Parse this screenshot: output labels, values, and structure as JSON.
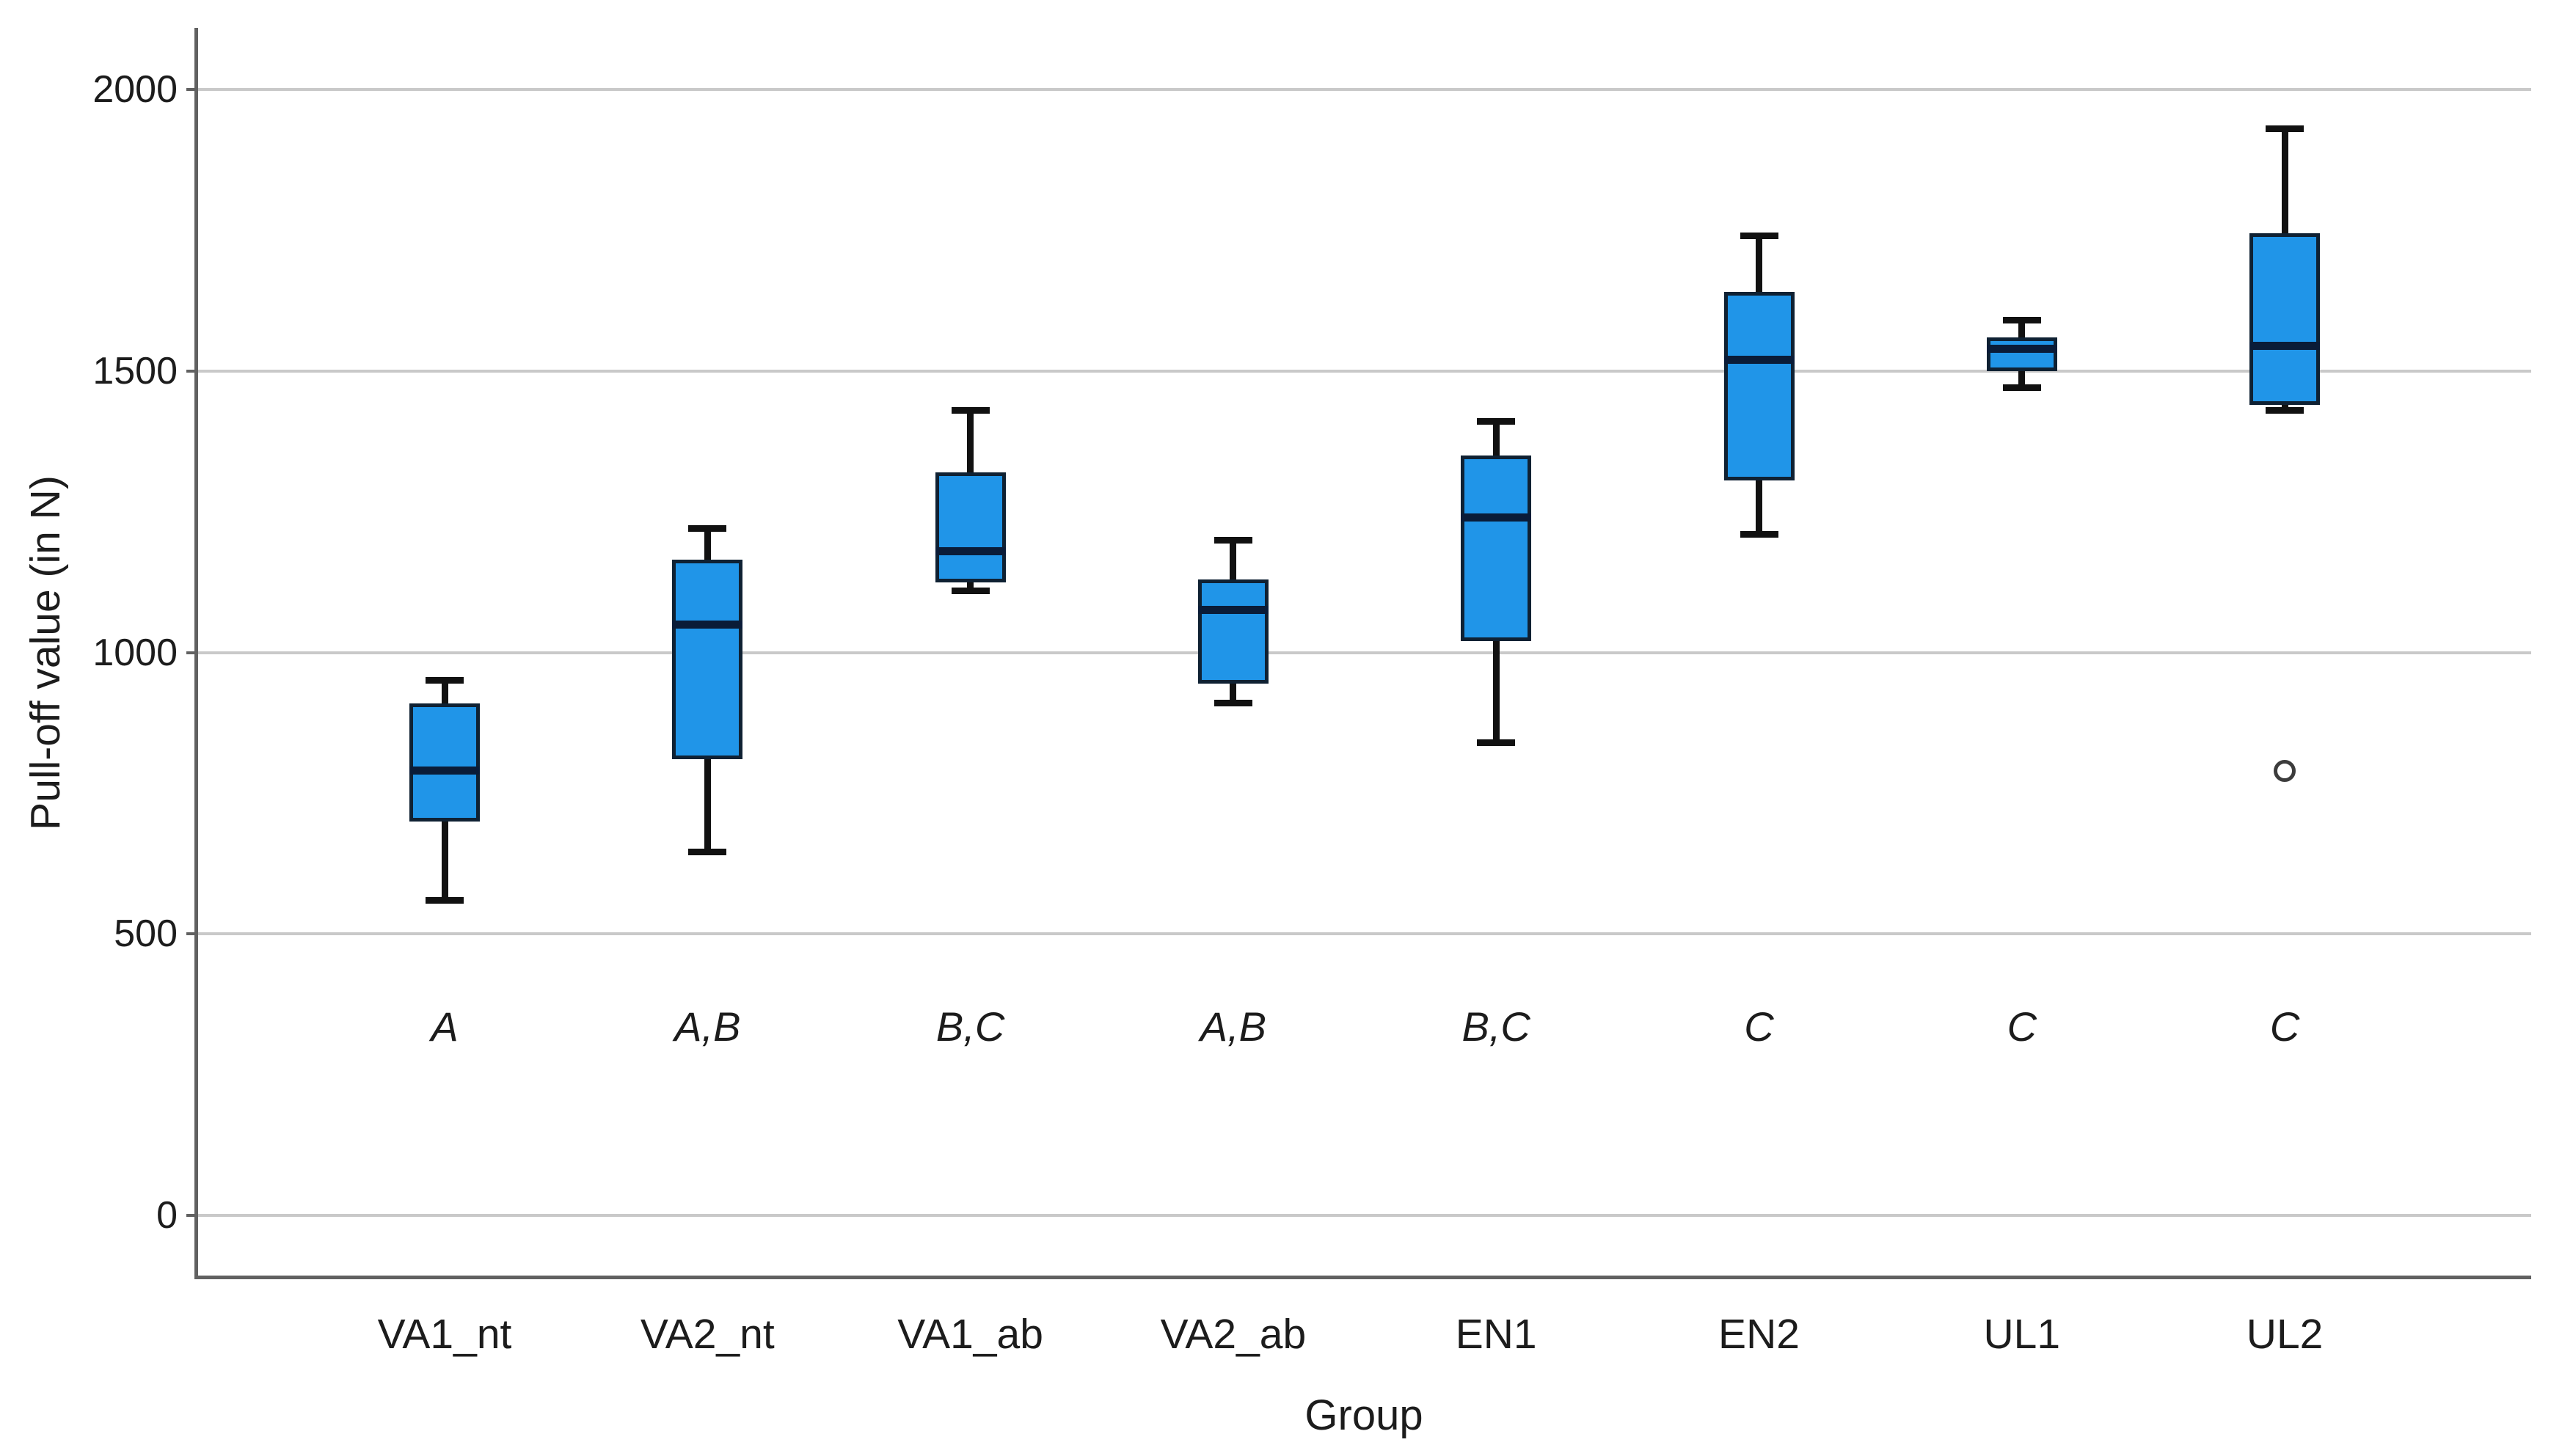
{
  "chart_data": {
    "type": "boxplot",
    "title": "",
    "xlabel": "Group",
    "ylabel": "Pull-off value (in N)",
    "ylim": [
      0,
      2000
    ],
    "yticks": [
      0,
      500,
      1000,
      1500,
      2000
    ],
    "grid": "horizontal gridlines at each y tick, light gray",
    "legend": "none",
    "categories": [
      "VA1_nt",
      "VA2_nt",
      "VA1_ab",
      "VA2_ab",
      "EN1",
      "EN2",
      "UL1",
      "UL2"
    ],
    "boxes": [
      {
        "category": "VA1_nt",
        "letter": "A",
        "min": 560,
        "q1": 700,
        "median": 790,
        "q3": 910,
        "max": 950,
        "outliers": []
      },
      {
        "category": "VA2_nt",
        "letter": "A,B",
        "min": 645,
        "q1": 810,
        "median": 1050,
        "q3": 1165,
        "max": 1220,
        "outliers": []
      },
      {
        "category": "VA1_ab",
        "letter": "B,C",
        "min": 1110,
        "q1": 1125,
        "median": 1180,
        "q3": 1320,
        "max": 1430,
        "outliers": []
      },
      {
        "category": "VA2_ab",
        "letter": "A,B",
        "min": 910,
        "q1": 945,
        "median": 1075,
        "q3": 1130,
        "max": 1200,
        "outliers": []
      },
      {
        "category": "EN1",
        "letter": "B,C",
        "min": 840,
        "q1": 1020,
        "median": 1240,
        "q3": 1350,
        "max": 1410,
        "outliers": []
      },
      {
        "category": "EN2",
        "letter": "C",
        "min": 1210,
        "q1": 1305,
        "median": 1520,
        "q3": 1640,
        "max": 1740,
        "outliers": []
      },
      {
        "category": "UL1",
        "letter": "C",
        "min": 1470,
        "q1": 1500,
        "median": 1540,
        "q3": 1560,
        "max": 1590,
        "outliers": []
      },
      {
        "category": "UL2",
        "letter": "C",
        "min": 1430,
        "q1": 1440,
        "median": 1545,
        "q3": 1745,
        "max": 1930,
        "outliers": [
          790
        ]
      }
    ]
  },
  "colors": {
    "box_fill": "#2095e8",
    "box_border": "#0f2133",
    "median": "#0a1c38",
    "whisker": "#111111",
    "gridline": "#c9c9c9",
    "axis": "#616161",
    "text": "#1c1c1c",
    "outlier": "#3c3c3c",
    "background": "#ffffff"
  }
}
